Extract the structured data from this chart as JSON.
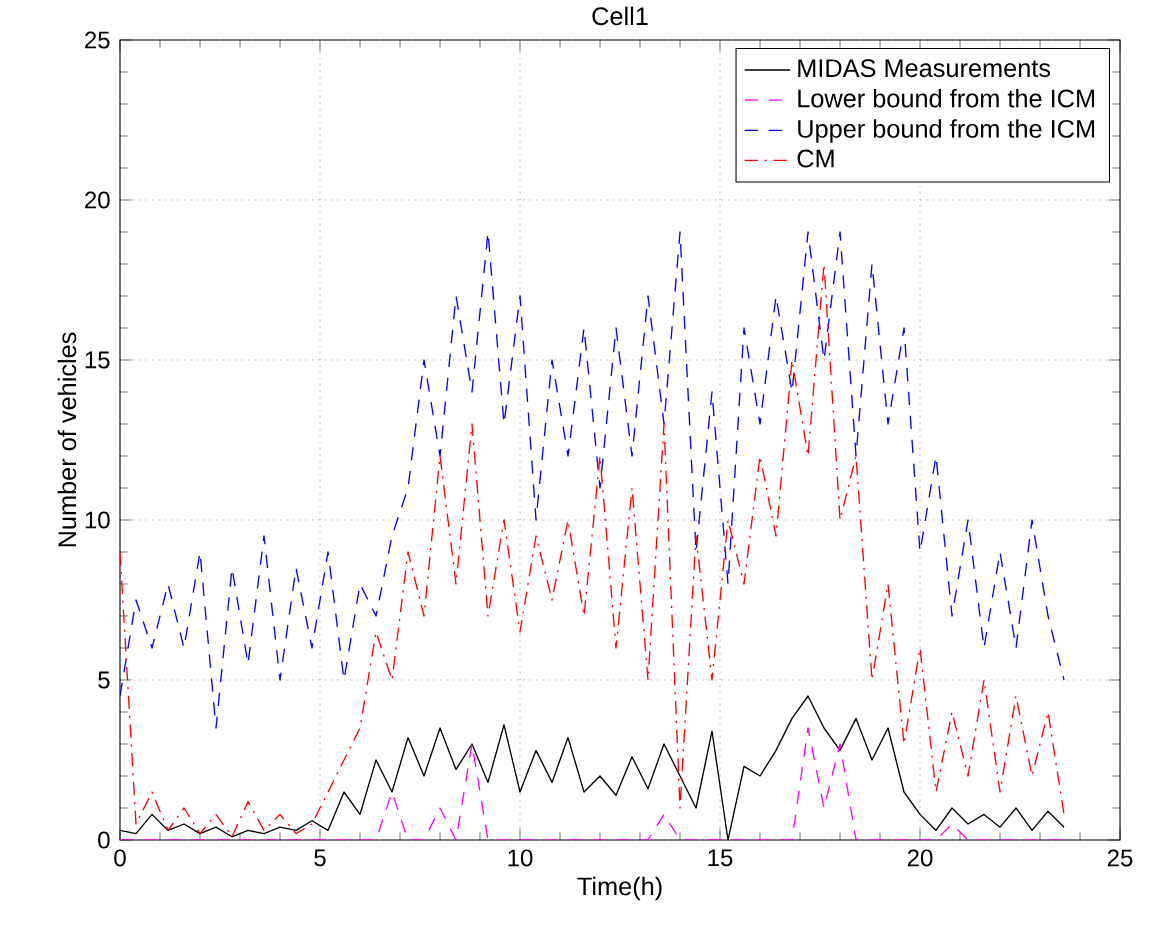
{
  "chart_data": {
    "type": "line",
    "title": "Cell1",
    "xlabel": "Time(h)",
    "ylabel": "Number of vehicles",
    "x": [
      0,
      0.4,
      0.8,
      1.2,
      1.6,
      2.0,
      2.4,
      2.8,
      3.2,
      3.6,
      4.0,
      4.4,
      4.8,
      5.2,
      5.6,
      6.0,
      6.4,
      6.8,
      7.2,
      7.6,
      8.0,
      8.4,
      8.8,
      9.2,
      9.6,
      10.0,
      10.4,
      10.8,
      11.2,
      11.6,
      12.0,
      12.4,
      12.8,
      13.2,
      13.6,
      14.0,
      14.4,
      14.8,
      15.2,
      15.6,
      16.0,
      16.4,
      16.8,
      17.2,
      17.6,
      18.0,
      18.4,
      18.8,
      19.2,
      19.6,
      20.0,
      20.4,
      20.8,
      21.2,
      21.6,
      22.0,
      22.4,
      22.8,
      23.2,
      23.6
    ],
    "series": [
      {
        "name": "MIDAS Measurements",
        "color": "#000000",
        "line_style": "solid",
        "values": [
          0.3,
          0.2,
          0.8,
          0.3,
          0.5,
          0.2,
          0.4,
          0.1,
          0.3,
          0.2,
          0.4,
          0.3,
          0.6,
          0.3,
          1.5,
          0.8,
          2.5,
          1.5,
          3.2,
          2.0,
          3.5,
          2.2,
          3.0,
          1.8,
          3.6,
          1.5,
          2.8,
          1.8,
          3.2,
          1.5,
          2.0,
          1.4,
          2.6,
          1.6,
          3.0,
          2.0,
          1.0,
          3.4,
          0,
          2.3,
          2.0,
          2.8,
          3.8,
          4.5,
          3.5,
          2.8,
          3.8,
          2.5,
          3.5,
          1.5,
          0.8,
          0.3,
          1.0,
          0.5,
          0.8,
          0.4,
          1.0,
          0.3,
          0.9,
          0.4
        ]
      },
      {
        "name": "Lower bound from the ICM",
        "color": "#ff00ff",
        "line_style": "dashed",
        "values": [
          0,
          0,
          0,
          0,
          0,
          0,
          0,
          0,
          0,
          0,
          0,
          0,
          0,
          0,
          0,
          0,
          0,
          1.5,
          0,
          0,
          1.0,
          0,
          3.0,
          0,
          0,
          0,
          0,
          0,
          0,
          0,
          0,
          0,
          0,
          0,
          0.8,
          0,
          0,
          0,
          0,
          0,
          0,
          0,
          0,
          3.5,
          1.0,
          3.0,
          0,
          0,
          0,
          0,
          0,
          0,
          0.5,
          0,
          0,
          0,
          0,
          0,
          0,
          0
        ]
      },
      {
        "name": "Upper bound from the ICM",
        "color": "#0000ff",
        "line_style": "dashed",
        "values": [
          4.5,
          7.5,
          6.0,
          8.0,
          6.0,
          9.0,
          3.5,
          8.5,
          5.5,
          9.5,
          5.0,
          8.5,
          6.0,
          9.0,
          5.0,
          8.0,
          7.0,
          9.5,
          11,
          15,
          12,
          17,
          14,
          19,
          13,
          17,
          10,
          15,
          12,
          16,
          11,
          16,
          12,
          17,
          13,
          19,
          9,
          14,
          8,
          16,
          13,
          17,
          14,
          19,
          15,
          19,
          12,
          18,
          13,
          16,
          9,
          12,
          7,
          10,
          6,
          9,
          6,
          10,
          7,
          5
        ]
      },
      {
        "name": "CM",
        "color": "#ff0000",
        "line_style": "dashdot",
        "values": [
          9,
          0.5,
          1.5,
          0.3,
          1.0,
          0.2,
          0.8,
          0.1,
          1.2,
          0.3,
          0.8,
          0.2,
          0.5,
          1.5,
          2.5,
          3.5,
          6.5,
          5.0,
          9.0,
          7.0,
          12,
          8.0,
          13,
          7.0,
          10,
          6.5,
          9.5,
          7.5,
          10,
          7.0,
          12,
          6.0,
          11,
          5.0,
          13,
          1.0,
          9.5,
          5.0,
          10,
          8.0,
          12,
          9.5,
          15,
          12,
          18,
          10,
          12,
          5.0,
          8.0,
          3.0,
          6.0,
          1.5,
          4.0,
          2.0,
          5.0,
          1.5,
          4.5,
          2.0,
          4.0,
          0.8
        ]
      }
    ],
    "xlim": [
      0,
      25
    ],
    "ylim": [
      0,
      25
    ],
    "xticks": [
      0,
      5,
      10,
      15,
      20,
      25
    ],
    "yticks": [
      0,
      5,
      10,
      15,
      20,
      25
    ],
    "grid": true,
    "legend": "top right"
  }
}
